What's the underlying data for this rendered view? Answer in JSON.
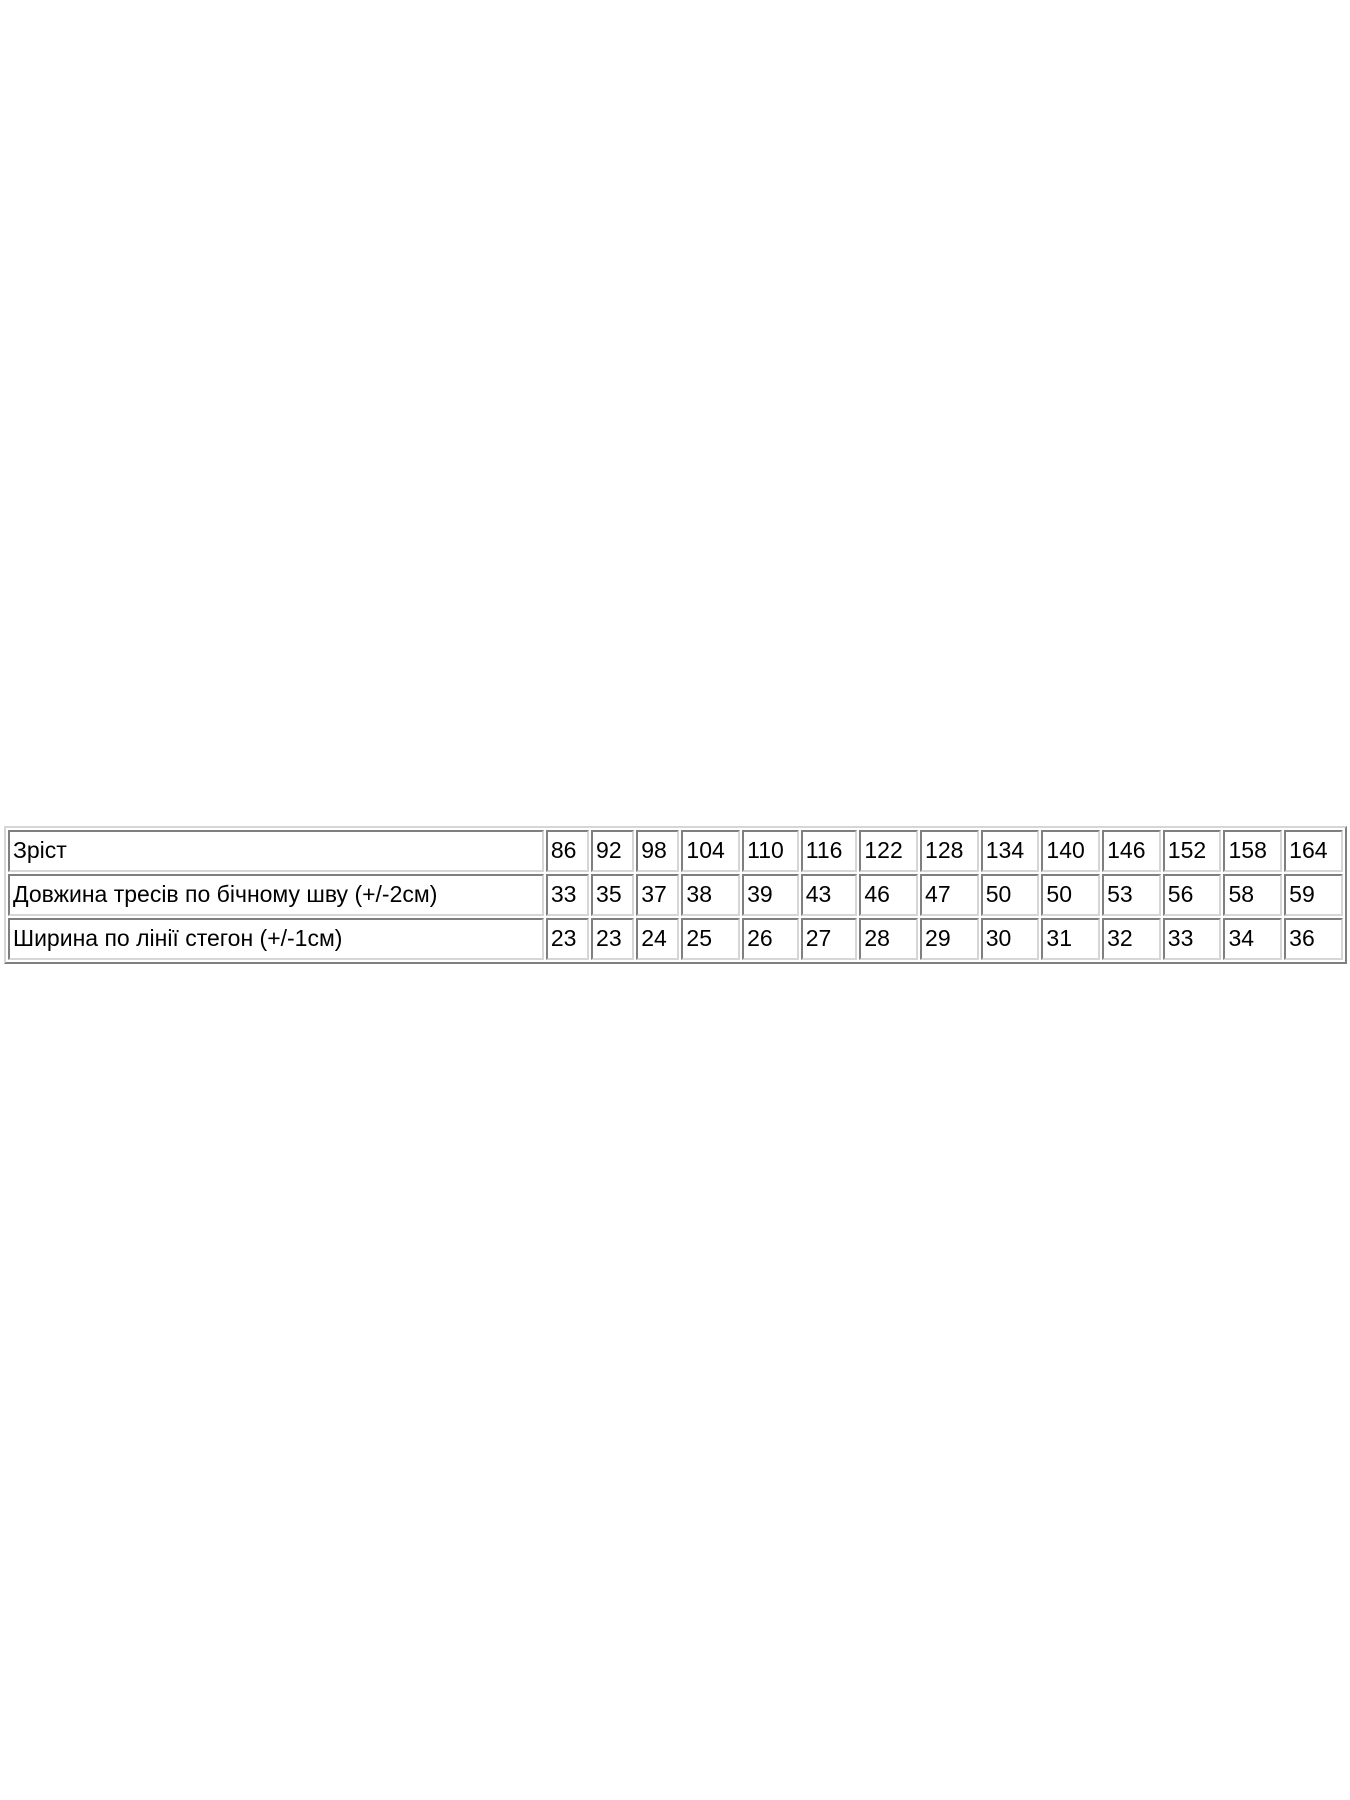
{
  "page": {
    "background_color": "#ffffff",
    "text_color": "#000000",
    "table_border_dark": "#7f7f7f",
    "table_border_light": "#d6d6d6"
  },
  "size_table": {
    "rows": [
      {
        "label": "Зріст",
        "values": [
          "86",
          "92",
          "98",
          "104",
          "110",
          "116",
          "122",
          "128",
          "134",
          "140",
          "146",
          "152",
          "158",
          "164"
        ]
      },
      {
        "label": "Довжина тресів по бічному шву (+/-2см)",
        "values": [
          "33",
          "35",
          "37",
          "38",
          "39",
          "43",
          "46",
          "47",
          "50",
          "50",
          "53",
          "56",
          "58",
          "59"
        ]
      },
      {
        "label": "Ширина по лінії стегон (+/-1см)",
        "values": [
          "23",
          "23",
          "24",
          "25",
          "26",
          "27",
          "28",
          "29",
          "30",
          "31",
          "32",
          "33",
          "34",
          "36"
        ]
      }
    ]
  }
}
